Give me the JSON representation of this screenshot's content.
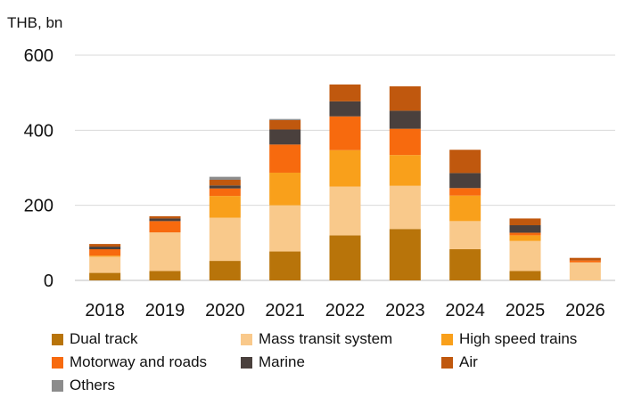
{
  "chart_data": {
    "type": "bar",
    "stacked": true,
    "unit_label": "THB, bn",
    "categories": [
      "2018",
      "2019",
      "2020",
      "2021",
      "2022",
      "2023",
      "2024",
      "2025",
      "2026"
    ],
    "y_ticks": [
      "0",
      "200",
      "400",
      "600"
    ],
    "ylim": [
      0,
      600
    ],
    "grid": true,
    "legend_position": "bottom",
    "series": [
      {
        "name": "Dual track",
        "color": "#B8740A",
        "values": [
          20,
          25,
          52,
          77,
          120,
          137,
          83,
          25,
          0
        ]
      },
      {
        "name": "Mass transit system",
        "color": "#F9C98B",
        "values": [
          43,
          103,
          115,
          123,
          130,
          115,
          75,
          80,
          48
        ]
      },
      {
        "name": "High speed trains",
        "color": "#F9A01B",
        "values": [
          3,
          0,
          58,
          87,
          97,
          82,
          68,
          15,
          0
        ]
      },
      {
        "name": "Motorway and roads",
        "color": "#F76A0E",
        "values": [
          17,
          30,
          20,
          75,
          90,
          70,
          20,
          7,
          5
        ]
      },
      {
        "name": "Marine",
        "color": "#4A403D",
        "values": [
          7,
          7,
          8,
          40,
          40,
          48,
          40,
          20,
          0
        ]
      },
      {
        "name": "Air",
        "color": "#C0580E",
        "values": [
          7,
          6,
          15,
          25,
          45,
          65,
          62,
          18,
          7
        ]
      },
      {
        "name": "Others",
        "color": "#8C8C8C",
        "values": [
          0,
          0,
          8,
          3,
          0,
          0,
          0,
          0,
          0
        ]
      }
    ]
  }
}
